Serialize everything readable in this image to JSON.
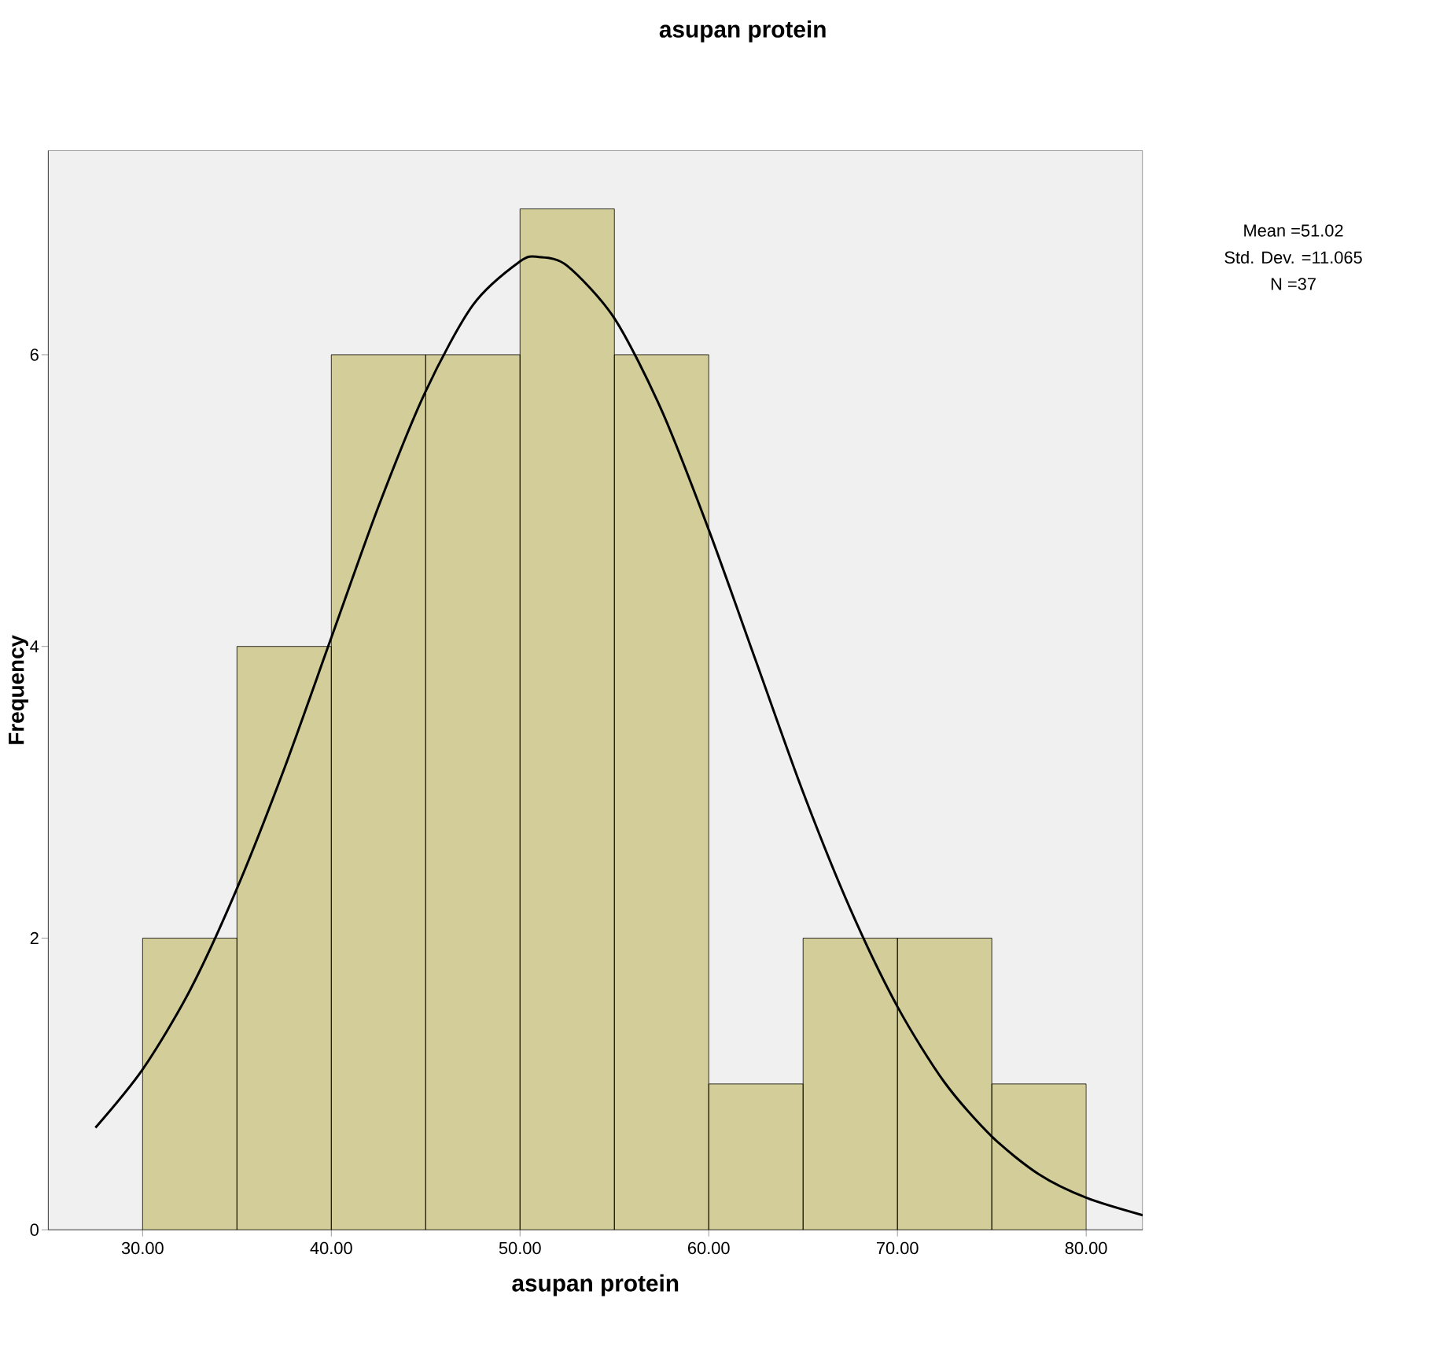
{
  "chart_data": {
    "type": "histogram",
    "title": "asupan protein",
    "xlabel": "asupan protein",
    "ylabel": "Frequency",
    "bins": [
      30,
      35,
      40,
      45,
      50,
      55,
      60,
      65,
      70,
      75,
      80
    ],
    "values": [
      2,
      4,
      6,
      6,
      7,
      6,
      1,
      2,
      2,
      1
    ],
    "color": "#d3ce99",
    "series": [
      {
        "type": "line",
        "color": "#000000",
        "x": [
          27.5,
          30,
          32.5,
          35,
          37.5,
          40,
          42.5,
          45,
          47.5,
          50,
          51,
          52.5,
          55,
          57.5,
          60,
          62.5,
          65,
          67.5,
          70,
          72.5,
          75,
          77.5,
          80,
          83
        ],
        "values": [
          0.7,
          1.1,
          1.64,
          2.34,
          3.16,
          4.06,
          4.96,
          5.75,
          6.34,
          6.64,
          6.67,
          6.61,
          6.25,
          5.62,
          4.8,
          3.9,
          3.0,
          2.2,
          1.53,
          1.01,
          0.64,
          0.38,
          0.22,
          0.1
        ]
      }
    ],
    "xlim": [
      25,
      83
    ],
    "ylim": [
      0,
      7.4
    ],
    "xticks": [
      {
        "value": 30,
        "label": "30.00"
      },
      {
        "value": 40,
        "label": "40.00"
      },
      {
        "value": 50,
        "label": "50.00"
      },
      {
        "value": 60,
        "label": "60.00"
      },
      {
        "value": 70,
        "label": "70.00"
      },
      {
        "value": 80,
        "label": "80.00"
      }
    ],
    "yticks": [
      0,
      2,
      4,
      6
    ],
    "grid": false,
    "annotations": [
      "Mean =51.02",
      "Std. Dev. =11.065",
      "N =37"
    ]
  }
}
